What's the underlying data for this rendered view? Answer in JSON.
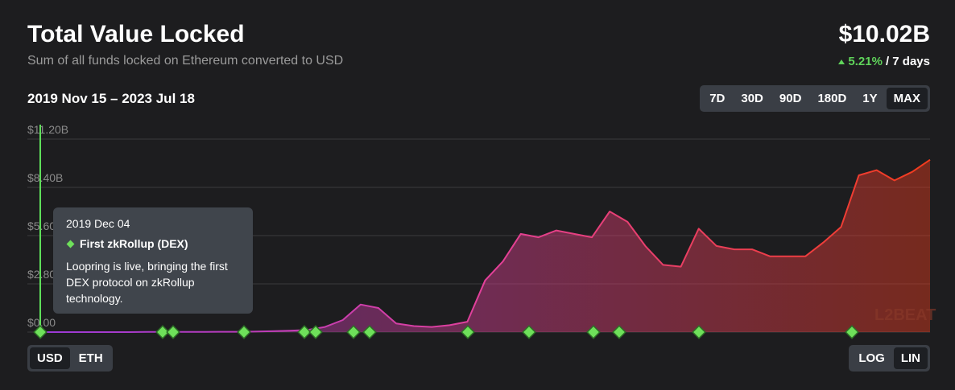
{
  "header": {
    "title": "Total Value Locked",
    "subtitle": "Sum of all funds locked on Ethereum converted to USD",
    "value": "$10.02B",
    "change": "5.21%",
    "period": "/ 7 days",
    "date_range": "2019 Nov 15 – 2023 Jul 18"
  },
  "range_buttons": {
    "options": [
      "7D",
      "30D",
      "90D",
      "180D",
      "1Y",
      "MAX"
    ],
    "selected": 5
  },
  "unit_buttons": {
    "options": [
      "USD",
      "ETH"
    ],
    "selected": 0
  },
  "scale_buttons": {
    "options": [
      "LOG",
      "LIN"
    ],
    "selected": 1
  },
  "chart_data": {
    "type": "area",
    "values": [
      0,
      0,
      0,
      0,
      0,
      0,
      0.01,
      0.01,
      0.01,
      0.01,
      0.02,
      0.02,
      0.03,
      0.05,
      0.08,
      0.12,
      0.3,
      0.7,
      1.6,
      1.4,
      0.5,
      0.35,
      0.3,
      0.4,
      0.6,
      3.0,
      4.1,
      5.7,
      5.5,
      5.9,
      5.7,
      5.5,
      7.0,
      6.4,
      5.0,
      3.9,
      3.8,
      6.0,
      5.0,
      4.8,
      4.8,
      4.4,
      4.4,
      4.4,
      5.2,
      6.1,
      9.1,
      9.4,
      8.8,
      9.3,
      10.0
    ],
    "ylim": [
      0,
      11.2
    ],
    "yticks": [
      {
        "value": 0,
        "label": "$0.00"
      },
      {
        "value": 2.8,
        "label": "$2.80B"
      },
      {
        "value": 5.6,
        "label": "$5.60B"
      },
      {
        "value": 8.4,
        "label": "$8.40B"
      },
      {
        "value": 11.2,
        "label": "$11.20B"
      }
    ],
    "grid": true,
    "colors": [
      "#9a3ad6",
      "#e2409a",
      "#f23c1c"
    ],
    "watermark": "L2BEAT"
  },
  "tooltip": {
    "date": "2019 Dec 04",
    "title": "First zkRollup (DEX)",
    "text": "Loopring is live, bringing the first DEX protocol on zkRollup technology."
  }
}
